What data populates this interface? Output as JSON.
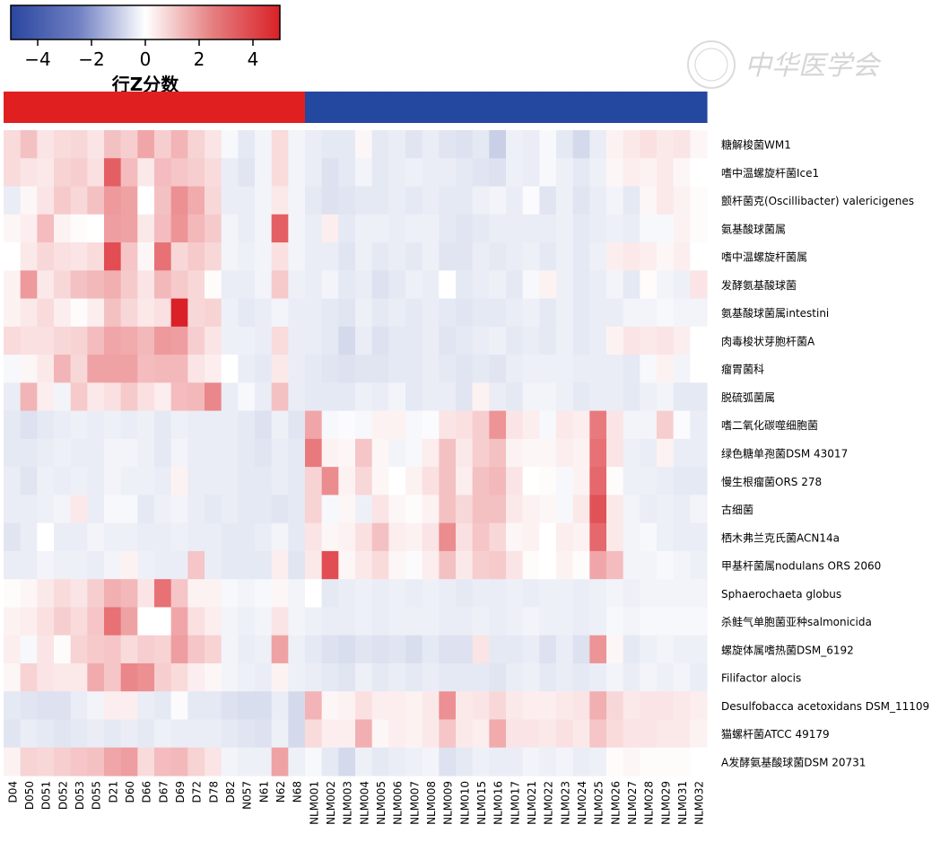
{
  "chart_data": {
    "type": "heatmap",
    "legend": {
      "title": "行Z分数",
      "ticks": [
        -4,
        -2,
        0,
        2,
        4
      ],
      "tick_labels": [
        "−4",
        "−2",
        "0",
        "2",
        "4"
      ],
      "range": [
        -5,
        5
      ],
      "colors": {
        "low": "#2a46a0",
        "mid": "#ffffff",
        "high": "#d92127"
      }
    },
    "group_colors": {
      "red_group": "#e02020",
      "blue_group": "#2447a0"
    },
    "watermark": "中华医学会",
    "columns": [
      "D04",
      "D050",
      "D051",
      "D052",
      "D053",
      "D055",
      "D21",
      "D60",
      "D66",
      "D67",
      "D69",
      "D72",
      "D78",
      "D82",
      "N057",
      "N61",
      "N62",
      "N68",
      "NLM001",
      "NLM002",
      "NLM003",
      "NLM004",
      "NLM005",
      "NLM006",
      "NLM007",
      "NLM008",
      "NLM009",
      "NLM010",
      "NLM015",
      "NLM016",
      "NLM017",
      "NLM021",
      "NLM022",
      "NLM023",
      "NLM024",
      "NLM025",
      "NLM026",
      "NLM027",
      "NLM028",
      "NLM029",
      "NLM031",
      "NLM032"
    ],
    "column_groups": [
      "red",
      "red",
      "red",
      "red",
      "red",
      "red",
      "red",
      "red",
      "red",
      "red",
      "red",
      "red",
      "red",
      "red",
      "red",
      "red",
      "red",
      "red",
      "blue",
      "blue",
      "blue",
      "blue",
      "blue",
      "blue",
      "blue",
      "blue",
      "blue",
      "blue",
      "blue",
      "blue",
      "blue",
      "blue",
      "blue",
      "blue",
      "blue",
      "blue",
      "blue",
      "blue",
      "blue",
      "blue",
      "blue",
      "blue"
    ],
    "rows": [
      "糖解梭菌WM1",
      "嗜中温螺旋杆菌Ice1",
      "颤杆菌克(Oscillibacter) valericigenes",
      "氨基酸球菌属",
      "嗜中温螺旋杆菌属",
      "发酵氨基酸球菌",
      "氨基酸球菌属intestini",
      "肉毒梭状芽胞杆菌A",
      "瘤胃菌科",
      "脱硫弧菌属",
      "嗜二氧化碳噬细胞菌",
      "绿色糖单孢菌DSM 43017",
      "慢生根瘤菌ORS 278",
      "古细菌",
      "栖木弗兰克氏菌ACN14a",
      "甲基杆菌属nodulans ORS 2060",
      "Sphaerochaeta globus",
      "杀鲑气单胞菌亚种salmonicida",
      "螺旋体属嗜热菌DSM_6192",
      "Filifactor alocis",
      "Desulfobacca acetoxidans DSM_11109",
      "猫螺杆菌ATCC 49179",
      "A发酵氨基酸球菌DSM 20731"
    ],
    "values": [
      [
        0.8,
        1.4,
        0.6,
        0.8,
        0.9,
        0.6,
        1.4,
        1.1,
        2.0,
        1.1,
        1.7,
        1.0,
        0.6,
        -0.2,
        -0.6,
        -0.3,
        0.8,
        -0.3,
        -0.5,
        -0.6,
        -0.6,
        0.2,
        -0.6,
        -0.5,
        -0.7,
        -0.5,
        -0.7,
        -0.8,
        -0.6,
        -1.3,
        -0.4,
        -0.5,
        -0.2,
        -0.6,
        -1.0,
        -0.5,
        0.3,
        0.5,
        0.7,
        0.5,
        0.6,
        0.2
      ],
      [
        0.8,
        0.6,
        0.5,
        1.0,
        1.1,
        0.7,
        3.6,
        1.5,
        0.5,
        1.5,
        1.3,
        1.1,
        0.8,
        -0.5,
        -0.7,
        -0.3,
        0.8,
        -0.3,
        -0.5,
        -0.8,
        -0.6,
        -0.3,
        -0.6,
        -0.5,
        -0.4,
        -0.5,
        -0.5,
        -0.6,
        -0.7,
        -0.8,
        -0.4,
        -0.5,
        -0.2,
        -0.4,
        -0.6,
        -0.4,
        0.2,
        0.4,
        0.3,
        0.5,
        0.2,
        0.0
      ],
      [
        -0.5,
        0.2,
        0.6,
        1.2,
        0.9,
        1.4,
        2.3,
        2.1,
        0.0,
        1.4,
        2.5,
        1.9,
        0.9,
        -0.5,
        -0.5,
        -0.3,
        0.5,
        -0.3,
        -0.6,
        -0.8,
        -0.7,
        -0.6,
        -0.6,
        -0.5,
        -0.6,
        -0.5,
        -0.6,
        -0.6,
        -0.4,
        -0.3,
        -0.5,
        -0.1,
        -0.7,
        -0.4,
        -0.7,
        -0.5,
        -0.3,
        -0.6,
        0.2,
        0.5,
        0.3,
        0.1
      ],
      [
        0.2,
        0.4,
        1.5,
        0.3,
        0.1,
        0.0,
        2.2,
        2.1,
        0.5,
        1.5,
        2.4,
        1.6,
        1.2,
        -0.3,
        -0.5,
        -0.3,
        3.6,
        -0.3,
        -0.5,
        0.4,
        -0.6,
        -0.4,
        -0.4,
        -0.5,
        -0.4,
        -0.4,
        -0.6,
        -0.7,
        -0.6,
        -0.5,
        -0.5,
        -0.5,
        -0.5,
        -0.4,
        -0.6,
        -0.5,
        -0.4,
        -0.5,
        -0.2,
        -0.2,
        0.3,
        0.1
      ],
      [
        0.0,
        0.5,
        0.9,
        0.7,
        0.6,
        0.8,
        4.0,
        1.3,
        0.2,
        3.2,
        0.9,
        1.2,
        0.9,
        -0.3,
        -0.4,
        -0.3,
        0.7,
        -0.3,
        -0.5,
        -0.5,
        -0.7,
        -0.4,
        -0.6,
        -0.5,
        -0.6,
        -0.4,
        -0.7,
        -0.7,
        -0.5,
        -0.6,
        -0.5,
        -0.4,
        -0.6,
        -0.4,
        -0.6,
        -0.4,
        0.4,
        0.5,
        0.4,
        0.2,
        0.4,
        0.0
      ],
      [
        0.3,
        2.3,
        0.5,
        0.9,
        1.4,
        1.6,
        1.8,
        1.2,
        0.6,
        1.6,
        1.2,
        0.9,
        0.1,
        -0.5,
        -0.5,
        -0.3,
        1.2,
        -0.4,
        -0.5,
        -0.3,
        -0.6,
        -0.5,
        -0.8,
        -0.6,
        -0.4,
        -0.5,
        0.0,
        -0.6,
        -0.5,
        -0.4,
        -0.6,
        -0.2,
        0.3,
        -0.4,
        -0.6,
        -0.5,
        -0.3,
        -0.6,
        0.1,
        -0.3,
        -0.4,
        0.6
      ],
      [
        0.3,
        0.5,
        0.8,
        0.4,
        0.1,
        0.4,
        1.4,
        0.9,
        0.5,
        0.7,
        5.0,
        0.9,
        1.0,
        -0.4,
        -0.6,
        -0.5,
        -0.3,
        -0.5,
        -0.5,
        -0.6,
        -0.7,
        -0.4,
        -0.6,
        -0.5,
        -0.6,
        -0.5,
        -0.6,
        -0.7,
        -0.6,
        -0.6,
        -0.5,
        -0.4,
        -0.6,
        -0.4,
        -0.6,
        -0.5,
        -0.5,
        -0.3,
        -0.3,
        -0.2,
        -0.3,
        -0.3
      ],
      [
        0.8,
        0.7,
        0.7,
        0.9,
        1.0,
        1.5,
        2.0,
        1.9,
        1.6,
        2.3,
        2.2,
        1.1,
        0.6,
        -0.4,
        -0.4,
        -0.5,
        0.8,
        -0.5,
        -0.5,
        -0.6,
        -1.0,
        -0.5,
        -0.8,
        -0.6,
        -0.6,
        -0.5,
        -0.7,
        -0.6,
        -0.5,
        -0.4,
        -0.6,
        -0.5,
        -0.6,
        -0.4,
        -0.6,
        -0.5,
        0.3,
        0.6,
        0.5,
        0.6,
        0.4,
        0.0
      ],
      [
        -0.2,
        0.2,
        0.5,
        1.7,
        0.9,
        2.1,
        2.1,
        2.1,
        1.5,
        1.6,
        1.6,
        0.6,
        0.4,
        0.0,
        -0.5,
        -0.6,
        0.5,
        -0.5,
        -0.6,
        -0.7,
        -0.8,
        -0.7,
        -0.7,
        -0.6,
        -0.6,
        -0.5,
        -0.6,
        -0.7,
        -0.6,
        -0.7,
        -0.5,
        -0.4,
        -0.4,
        -0.4,
        -0.5,
        -0.5,
        -0.5,
        -0.6,
        -0.2,
        0.3,
        -0.3,
        0.0
      ],
      [
        -0.5,
        1.7,
        0.4,
        -0.3,
        1.2,
        0.5,
        0.7,
        1.2,
        0.7,
        0.4,
        1.5,
        1.6,
        2.7,
        -0.5,
        -0.2,
        -0.5,
        1.4,
        -0.5,
        -0.6,
        -0.6,
        -0.6,
        -0.4,
        -0.5,
        -0.3,
        -0.6,
        -0.5,
        -0.5,
        -0.7,
        0.3,
        -0.5,
        -0.6,
        -0.3,
        -0.3,
        -0.4,
        -0.6,
        -0.5,
        -0.5,
        -0.6,
        -0.4,
        -0.3,
        -0.6,
        -0.6
      ],
      [
        -0.6,
        -0.8,
        -0.6,
        -0.5,
        -0.4,
        -0.5,
        -0.4,
        -0.5,
        -0.4,
        -0.6,
        -0.4,
        -0.5,
        -0.5,
        -0.5,
        -0.6,
        -0.8,
        -0.4,
        -0.7,
        2.0,
        -0.2,
        -0.1,
        -0.2,
        0.3,
        0.3,
        -0.2,
        -0.1,
        0.6,
        0.7,
        1.1,
        2.4,
        0.6,
        0.4,
        -0.2,
        0.5,
        0.4,
        3.0,
        0.6,
        -0.3,
        -0.3,
        1.1,
        -0.1,
        -0.5
      ],
      [
        -0.6,
        -0.6,
        -0.5,
        -0.4,
        -0.5,
        -0.5,
        -0.3,
        -0.3,
        -0.4,
        -0.6,
        -0.3,
        -0.5,
        -0.5,
        -0.5,
        -0.6,
        -0.7,
        -0.5,
        -0.6,
        3.0,
        0.3,
        0.2,
        1.3,
        0.2,
        -0.3,
        -0.2,
        0.4,
        1.4,
        0.5,
        1.1,
        1.4,
        0.3,
        0.2,
        0.2,
        0.4,
        0.3,
        3.2,
        0.6,
        -0.4,
        -0.5,
        0.3,
        -0.5,
        -0.5
      ],
      [
        -0.5,
        -0.7,
        -0.4,
        -0.5,
        -0.4,
        -0.5,
        -0.3,
        -0.4,
        -0.4,
        -0.5,
        0.3,
        -0.5,
        -0.5,
        -0.5,
        -0.6,
        -0.6,
        -0.5,
        -0.6,
        1.0,
        2.6,
        0.3,
        0.9,
        0.2,
        0.0,
        0.3,
        0.7,
        1.4,
        0.4,
        1.4,
        1.6,
        0.6,
        0.0,
        0.1,
        -0.2,
        0.3,
        3.4,
        0.1,
        -0.4,
        -0.4,
        -0.5,
        -0.6,
        -0.6
      ],
      [
        -0.5,
        -0.5,
        -0.4,
        -0.3,
        0.5,
        -0.5,
        -0.2,
        -0.2,
        -0.6,
        -0.4,
        -0.3,
        -0.5,
        -0.6,
        -0.5,
        -0.6,
        -0.6,
        -0.7,
        -0.6,
        1.0,
        -0.2,
        0.2,
        -0.4,
        0.6,
        0.2,
        0.1,
        0.3,
        1.4,
        0.9,
        1.4,
        1.4,
        0.5,
        0.3,
        0.2,
        -0.2,
        0.5,
        3.9,
        0.5,
        -0.3,
        -0.5,
        -0.4,
        -0.5,
        -0.3
      ],
      [
        -0.7,
        -0.5,
        0.0,
        -0.5,
        -0.5,
        -0.3,
        -0.4,
        -0.4,
        -0.5,
        -0.5,
        -0.4,
        -0.5,
        -0.5,
        -0.6,
        -0.6,
        -0.5,
        -0.3,
        -0.6,
        0.6,
        0.2,
        0.3,
        0.7,
        1.4,
        0.4,
        0.3,
        0.6,
        2.6,
        0.7,
        1.3,
        0.9,
        0.2,
        0.3,
        0.0,
        0.4,
        0.3,
        3.4,
        0.5,
        -0.3,
        -0.2,
        -0.4,
        -0.5,
        -0.5
      ],
      [
        -0.5,
        -0.5,
        -0.3,
        -0.4,
        -0.4,
        -0.5,
        -0.3,
        0.3,
        -0.4,
        -0.5,
        -0.5,
        1.3,
        -0.5,
        -0.6,
        -0.6,
        -0.6,
        0.4,
        -0.7,
        0.5,
        4.0,
        0.2,
        0.5,
        0.8,
        0.2,
        -0.1,
        0.4,
        1.4,
        0.5,
        1.1,
        1.2,
        0.6,
        0.1,
        0.0,
        0.3,
        0.1,
        2.0,
        1.5,
        -0.3,
        -0.3,
        -0.2,
        -0.3,
        -0.4
      ],
      [
        0.1,
        0.2,
        0.5,
        0.8,
        0.6,
        1.1,
        1.8,
        1.6,
        0.6,
        3.2,
        1.3,
        0.3,
        0.3,
        -0.2,
        -0.3,
        -0.2,
        0.2,
        -0.3,
        0.0,
        -0.6,
        -0.5,
        -0.4,
        -0.5,
        -0.4,
        -0.5,
        -0.4,
        -0.5,
        -0.6,
        -0.5,
        -0.5,
        -0.4,
        -0.5,
        -0.4,
        -0.4,
        -0.5,
        -0.4,
        -0.3,
        -0.4,
        -0.3,
        -0.3,
        -0.3,
        -0.3
      ],
      [
        0.3,
        0.4,
        0.7,
        1.1,
        0.8,
        1.3,
        3.2,
        2.1,
        0.0,
        0.0,
        2.0,
        0.7,
        0.4,
        -0.3,
        -0.4,
        -0.3,
        0.6,
        -0.3,
        -0.4,
        -0.5,
        -0.5,
        -0.4,
        -0.5,
        -0.4,
        -0.4,
        -0.4,
        -0.5,
        -0.5,
        -0.4,
        -0.5,
        -0.4,
        -0.3,
        -0.4,
        -0.4,
        -0.5,
        -0.4,
        -0.2,
        -0.3,
        -0.2,
        -0.2,
        -0.2,
        -0.2
      ],
      [
        0.4,
        -0.2,
        0.6,
        0.1,
        1.0,
        1.2,
        1.3,
        0.8,
        1.1,
        1.0,
        2.2,
        1.3,
        1.0,
        -0.3,
        -0.5,
        -0.4,
        2.1,
        -0.4,
        -0.6,
        -0.8,
        -0.9,
        -0.7,
        -0.8,
        -0.7,
        -0.9,
        -0.6,
        -0.8,
        -0.8,
        0.6,
        -0.6,
        -0.6,
        -0.5,
        -0.8,
        -0.5,
        -0.8,
        2.4,
        0.2,
        -0.6,
        -0.4,
        -0.3,
        -0.4,
        -0.4
      ],
      [
        0.2,
        1.0,
        0.6,
        0.5,
        0.5,
        1.9,
        1.3,
        2.7,
        2.5,
        1.1,
        0.8,
        0.4,
        0.2,
        -0.3,
        -0.4,
        -0.5,
        0.3,
        -0.4,
        -0.5,
        -0.6,
        -0.7,
        -0.4,
        -0.6,
        -0.5,
        -0.6,
        -0.5,
        -0.6,
        -0.6,
        -0.6,
        -0.7,
        -0.5,
        -0.4,
        -0.6,
        -0.5,
        -0.6,
        -0.5,
        -0.3,
        -0.5,
        -0.3,
        -0.4,
        -0.3,
        -0.5
      ],
      [
        -0.6,
        -0.7,
        -0.8,
        -0.8,
        -0.5,
        -0.3,
        0.4,
        0.4,
        -0.5,
        -0.6,
        -0.1,
        -0.6,
        -0.6,
        -0.8,
        -0.9,
        -0.9,
        -0.5,
        -1.0,
        1.7,
        0.2,
        0.3,
        0.7,
        0.4,
        0.4,
        0.3,
        0.5,
        2.5,
        0.5,
        0.6,
        0.9,
        0.5,
        0.4,
        0.4,
        0.5,
        0.6,
        1.8,
        0.9,
        0.5,
        0.6,
        0.6,
        0.5,
        0.4
      ],
      [
        -0.7,
        -0.5,
        -0.6,
        -0.7,
        -0.6,
        -0.5,
        -0.6,
        -0.5,
        -0.6,
        -0.4,
        -0.5,
        -0.5,
        -0.5,
        -0.6,
        -0.7,
        -0.8,
        -0.4,
        -1.0,
        0.8,
        0.4,
        0.4,
        1.8,
        0.2,
        0.4,
        0.3,
        0.5,
        1.3,
        0.5,
        0.4,
        1.9,
        0.6,
        0.6,
        0.5,
        0.7,
        0.5,
        1.3,
        0.8,
        0.6,
        0.6,
        0.5,
        0.5,
        0.3
      ],
      [
        0.3,
        1.0,
        0.9,
        1.1,
        1.3,
        1.4,
        2.0,
        2.2,
        0.8,
        1.5,
        1.6,
        1.0,
        0.6,
        -0.3,
        -0.4,
        -0.4,
        2.1,
        -0.4,
        -0.2,
        -0.6,
        -1.0,
        -0.4,
        -0.6,
        -0.5,
        -0.4,
        -0.3,
        -0.8,
        -0.6,
        -0.4,
        -0.5,
        -0.5,
        -0.3,
        -0.4,
        -0.3,
        -0.5,
        -0.4,
        0.1,
        0.2,
        0.1,
        0.1,
        0.1,
        0.0
      ]
    ]
  }
}
